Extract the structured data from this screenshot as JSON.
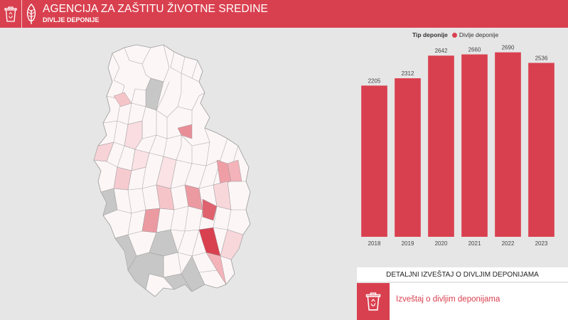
{
  "header": {
    "title": "AGENCIJA ZA ZAŠTITU ŽIVOTNE SREDINE",
    "subtitle": "DIVLJE DEPONIJE",
    "logo_icon": "recycle-bin-icon",
    "feather_icon": "feather-icon",
    "bg_color": "#d9404f"
  },
  "legend": {
    "title": "Tip deponije",
    "item": "Divlje deponije",
    "color": "#d9404f"
  },
  "chart_data": {
    "type": "bar",
    "categories": [
      "2018",
      "2019",
      "2020",
      "2021",
      "2022",
      "2023"
    ],
    "series": [
      {
        "name": "Divlje deponije",
        "values": [
          2205,
          2312,
          2642,
          2660,
          2690,
          2536
        ]
      }
    ],
    "ylim": [
      0,
      2800
    ],
    "grid": false,
    "legend_position": "top",
    "color": "#d9404f"
  },
  "report": {
    "heading": "DETALJNI IZVEŠTAJ O DIVLJIM DEPONIJAMA",
    "link_text": "Izveštaj o divljim deponijama",
    "icon": "recycle-bin-icon"
  }
}
